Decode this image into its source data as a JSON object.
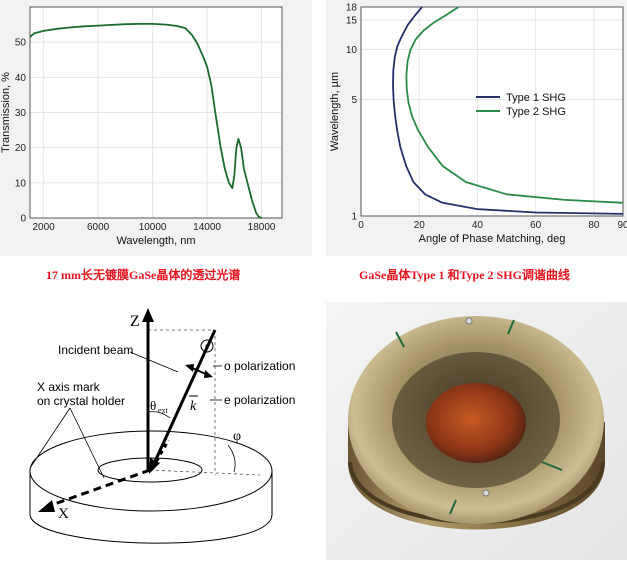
{
  "chart_data": [
    {
      "type": "line",
      "title": "",
      "xlabel": "Wavelength, nm",
      "ylabel": "Transmission, %",
      "xlim": [
        1000,
        19500
      ],
      "ylim": [
        0,
        60
      ],
      "x_ticks": [
        "2000",
        "6000",
        "10000",
        "14000",
        "18000"
      ],
      "y_ticks": [
        "0",
        "10",
        "20",
        "30",
        "40",
        "50"
      ],
      "grid": true,
      "series": [
        {
          "name": "Transmission",
          "color": "#1c6b30",
          "x": [
            1000,
            1300,
            2000,
            3000,
            4000,
            5000,
            6000,
            7000,
            8000,
            9000,
            10000,
            11000,
            11800,
            12400,
            12900,
            13300,
            13700,
            14000,
            14300,
            14600,
            15000,
            15300,
            15600,
            15850,
            16000,
            16150,
            16300,
            16500,
            16700,
            16900,
            17100,
            17300,
            17600,
            17800,
            18000
          ],
          "y": [
            51.5,
            52.5,
            53.2,
            53.8,
            54.2,
            54.5,
            54.7,
            54.9,
            55.1,
            55.2,
            55.2,
            55.0,
            54.6,
            54.0,
            52.0,
            49.5,
            46.0,
            43.0,
            38.0,
            30.0,
            20.0,
            14.0,
            10.0,
            8.5,
            12.0,
            20.0,
            22.5,
            20.0,
            14.0,
            11.0,
            8.0,
            5.0,
            1.5,
            0.3,
            0.0
          ]
        }
      ]
    },
    {
      "type": "line",
      "title": "",
      "xlabel": "Angle of Phase Matching, deg",
      "ylabel": "Wavelength, µm",
      "xlim": [
        0,
        90
      ],
      "ylim": [
        1,
        18
      ],
      "y_scale": "log",
      "x_ticks": [
        "0",
        "20",
        "40",
        "60",
        "80",
        "90"
      ],
      "y_ticks": [
        "1",
        "5",
        "10",
        "15",
        "18"
      ],
      "legend": "center-right",
      "grid": true,
      "series": [
        {
          "name": "Type 1 SHG",
          "color": "#27306a",
          "x": [
            90,
            60,
            40,
            28,
            22,
            18,
            15.5,
            13.5,
            12.5,
            11.7,
            11.2,
            11.0,
            11.1,
            11.6,
            12.5,
            14.0,
            16.0,
            18.5,
            21.0
          ],
          "y": [
            1.03,
            1.05,
            1.1,
            1.2,
            1.35,
            1.6,
            2.0,
            2.6,
            3.2,
            4.0,
            5.0,
            6.0,
            7.5,
            9.0,
            10.5,
            12.0,
            14.0,
            16.0,
            18.0
          ]
        },
        {
          "name": "Type 2 SHG",
          "color": "#2a8a4a",
          "x": [
            90,
            70,
            50,
            36,
            28,
            23,
            19.5,
            17.5,
            16.3,
            15.7,
            15.6,
            16.0,
            17.0,
            18.8,
            21.5,
            25.0,
            29.0,
            33.5
          ],
          "y": [
            1.2,
            1.25,
            1.35,
            1.6,
            2.0,
            2.6,
            3.3,
            4.0,
            4.8,
            5.8,
            7.0,
            8.5,
            10.0,
            11.5,
            13.0,
            14.5,
            16.0,
            18.0
          ]
        }
      ]
    }
  ],
  "captions": {
    "transmission": "17 mm长无镀膜GaSe晶体的透过光谱",
    "phase_matching": "GaSe晶体Type 1 和Type 2 SHG调谐曲线"
  },
  "diagram": {
    "z_label": "Z",
    "x_label": "X",
    "incident_beam": "Incident beam",
    "x_axis_mark_line1": "X axis mark",
    "x_axis_mark_line2": "on crystal holder",
    "theta": "θ",
    "theta_sub": "ext",
    "k_label": "k",
    "o_polarization": "o polarization",
    "e_polarization": "e polarization",
    "phi": "φ"
  },
  "colors": {
    "caption_red": "#e8141e",
    "panel_bg": "#f2f2f2",
    "transmission_line": "#1c6b30",
    "type1": "#27306a",
    "type2": "#2a8a4a"
  }
}
